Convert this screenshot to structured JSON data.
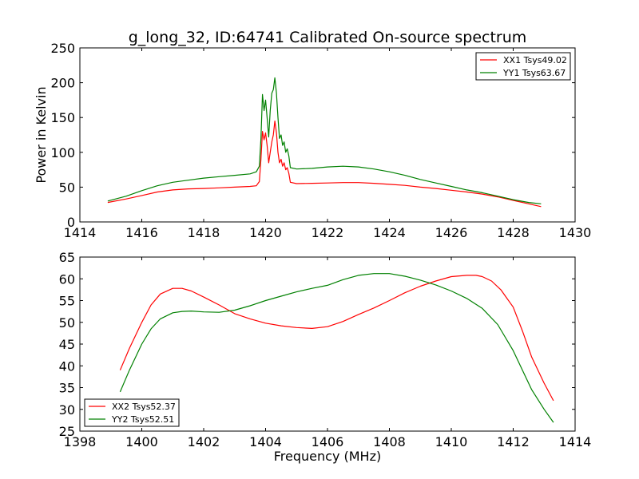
{
  "chart_data": [
    {
      "type": "line",
      "title": "g_long_32, ID:64741 Calibrated On-source spectrum",
      "xlabel": "",
      "ylabel": "Power in Kelvin",
      "xlim": [
        1414,
        1430
      ],
      "ylim": [
        0,
        250
      ],
      "xticks": [
        1414,
        1416,
        1418,
        1420,
        1422,
        1424,
        1426,
        1428,
        1430
      ],
      "yticks": [
        0,
        50,
        100,
        150,
        200,
        250
      ],
      "grid": false,
      "legend_position": "top-right",
      "series": [
        {
          "name": "XX1 Tsys49.02",
          "color": "#ff0000",
          "x": [
            1414.9,
            1415.5,
            1416.0,
            1416.5,
            1417.0,
            1417.5,
            1418.0,
            1418.5,
            1419.0,
            1419.5,
            1419.7,
            1419.8,
            1419.85,
            1419.9,
            1419.95,
            1420.0,
            1420.05,
            1420.1,
            1420.15,
            1420.2,
            1420.25,
            1420.3,
            1420.35,
            1420.4,
            1420.45,
            1420.5,
            1420.55,
            1420.6,
            1420.65,
            1420.7,
            1420.75,
            1420.8,
            1421.0,
            1421.5,
            1422.0,
            1422.5,
            1423.0,
            1423.5,
            1424.0,
            1424.5,
            1425.0,
            1425.5,
            1426.0,
            1426.5,
            1427.0,
            1427.5,
            1428.0,
            1428.5,
            1428.9
          ],
          "y": [
            28,
            33,
            38,
            43,
            46,
            47.5,
            48,
            49,
            50,
            51,
            52,
            58,
            90,
            130,
            118,
            128,
            110,
            85,
            100,
            115,
            125,
            145,
            128,
            100,
            85,
            90,
            80,
            85,
            75,
            78,
            70,
            57,
            55,
            55.5,
            56,
            56.5,
            56.5,
            55.5,
            54,
            52.5,
            50,
            48,
            45.5,
            43,
            40,
            36,
            31,
            26,
            22
          ]
        },
        {
          "name": "YY1 Tsys63.67",
          "color": "#008000",
          "x": [
            1414.9,
            1415.5,
            1416.0,
            1416.5,
            1417.0,
            1417.5,
            1418.0,
            1418.5,
            1419.0,
            1419.5,
            1419.7,
            1419.8,
            1419.85,
            1419.9,
            1419.95,
            1420.0,
            1420.05,
            1420.1,
            1420.15,
            1420.2,
            1420.25,
            1420.3,
            1420.35,
            1420.4,
            1420.45,
            1420.5,
            1420.55,
            1420.6,
            1420.65,
            1420.7,
            1420.75,
            1420.8,
            1421.0,
            1421.5,
            1422.0,
            1422.5,
            1423.0,
            1423.5,
            1424.0,
            1424.5,
            1425.0,
            1425.5,
            1426.0,
            1426.5,
            1427.0,
            1427.5,
            1428.0,
            1428.5,
            1428.9
          ],
          "y": [
            30,
            37,
            45,
            52,
            57,
            60,
            63,
            65,
            67,
            69,
            72,
            80,
            120,
            183,
            160,
            175,
            150,
            122,
            160,
            185,
            190,
            207,
            185,
            150,
            120,
            125,
            110,
            115,
            100,
            105,
            95,
            78,
            76,
            77,
            79,
            80,
            79,
            76,
            72,
            67,
            61,
            56,
            51,
            46,
            42,
            37,
            32,
            28,
            26
          ]
        }
      ]
    },
    {
      "type": "line",
      "title": "",
      "xlabel": "Frequency (MHz)",
      "ylabel": "",
      "xlim": [
        1398,
        1414
      ],
      "ylim": [
        25,
        65
      ],
      "xticks": [
        1398,
        1400,
        1402,
        1404,
        1406,
        1408,
        1410,
        1412,
        1414
      ],
      "yticks": [
        25,
        30,
        35,
        40,
        45,
        50,
        55,
        60,
        65
      ],
      "grid": false,
      "legend_position": "bottom-left",
      "series": [
        {
          "name": "XX2 Tsys52.37",
          "color": "#ff0000",
          "x": [
            1399.3,
            1399.6,
            1400.0,
            1400.3,
            1400.6,
            1401.0,
            1401.3,
            1401.6,
            1402.0,
            1402.5,
            1403.0,
            1403.5,
            1404.0,
            1404.5,
            1405.0,
            1405.5,
            1406.0,
            1406.5,
            1407.0,
            1407.5,
            1408.0,
            1408.5,
            1409.0,
            1409.5,
            1410.0,
            1410.5,
            1410.8,
            1411.0,
            1411.3,
            1411.6,
            1412.0,
            1412.3,
            1412.6,
            1413.0,
            1413.3
          ],
          "y": [
            39,
            44,
            50,
            54,
            56.5,
            57.8,
            57.8,
            57.2,
            55.8,
            54,
            52,
            50.8,
            49.8,
            49.2,
            48.8,
            48.6,
            49,
            50.2,
            51.8,
            53.3,
            55,
            56.8,
            58.3,
            59.5,
            60.5,
            60.8,
            60.8,
            60.5,
            59.5,
            57.5,
            53.5,
            48,
            42,
            36,
            32
          ]
        },
        {
          "name": "YY2 Tsys52.51",
          "color": "#008000",
          "x": [
            1399.3,
            1399.6,
            1400.0,
            1400.3,
            1400.6,
            1401.0,
            1401.3,
            1401.6,
            1402.0,
            1402.5,
            1403.0,
            1403.5,
            1404.0,
            1404.5,
            1405.0,
            1405.5,
            1406.0,
            1406.5,
            1407.0,
            1407.5,
            1408.0,
            1408.5,
            1409.0,
            1409.5,
            1410.0,
            1410.5,
            1411.0,
            1411.5,
            1412.0,
            1412.3,
            1412.6,
            1413.0,
            1413.3
          ],
          "y": [
            34,
            39,
            45,
            48.5,
            50.8,
            52.2,
            52.5,
            52.6,
            52.4,
            52.3,
            52.8,
            53.8,
            55,
            56,
            57,
            57.8,
            58.5,
            59.8,
            60.8,
            61.2,
            61.2,
            60.6,
            59.7,
            58.6,
            57.2,
            55.5,
            53.2,
            49.5,
            43.5,
            39,
            34.5,
            30,
            27
          ]
        }
      ]
    }
  ]
}
